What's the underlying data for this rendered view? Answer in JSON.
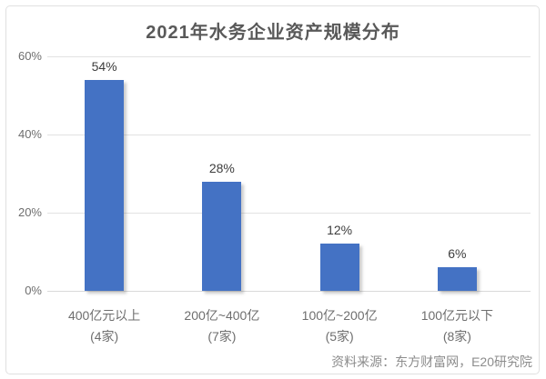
{
  "source": "资料来源：东方财富网，E20研究院",
  "chart_data": {
    "type": "bar",
    "title": "2021年水务企业资产规模分布",
    "categories": [
      "400亿元以上",
      "200亿~400亿",
      "100亿~200亿",
      "100亿元以下"
    ],
    "category_sublabels": [
      "(4家)",
      "(7家)",
      "(5家)",
      "(8家)"
    ],
    "values": [
      54,
      28,
      12,
      6
    ],
    "value_labels": [
      "54%",
      "28%",
      "12%",
      "6%"
    ],
    "xlabel": "",
    "ylabel": "",
    "ylim": [
      0,
      60
    ],
    "y_ticks": [
      {
        "value": 0,
        "label": "0%"
      },
      {
        "value": 20,
        "label": "20%"
      },
      {
        "value": 40,
        "label": "40%"
      },
      {
        "value": 60,
        "label": "60%"
      }
    ],
    "grid": true,
    "legend_position": "none"
  },
  "colors": {
    "bar": "#4472C4",
    "title_text": "#595959",
    "value_text": "#3d3d3d",
    "axis_text": "#6e6e6e",
    "gridline": "#e2e2e2",
    "baseline": "#d9d9d9",
    "frame_border": "#e0e0e0",
    "source_text": "#8c8c8c",
    "background": "#ffffff"
  }
}
